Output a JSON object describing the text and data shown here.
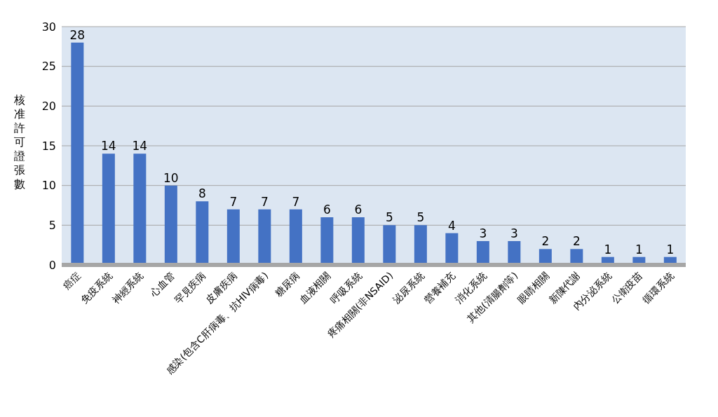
{
  "chart_data": {
    "type": "bar",
    "ylabel": "核准許可證張數",
    "categories": [
      "癌症",
      "免疫系統",
      "神經系統",
      "心血管",
      "罕見疾病",
      "皮膚疾病",
      "感染(包含C肝病毒、抗HIV病毒)",
      "糖尿病",
      "血液相關",
      "呼吸系統",
      "疼痛相關(非NSAID)",
      "泌尿系統",
      "營養補充",
      "消化系統",
      "其他(清腸劑等)",
      "眼睛相關",
      "新陳代謝",
      "內分泌系統",
      "公衛疫苗",
      "循環系統"
    ],
    "values": [
      28,
      14,
      14,
      10,
      8,
      7,
      7,
      7,
      6,
      6,
      5,
      5,
      4,
      3,
      3,
      2,
      2,
      1,
      1,
      1
    ],
    "color": "#4472c4",
    "ylim": [
      0,
      30
    ],
    "yticks": [
      0,
      5,
      10,
      15,
      20,
      25,
      30
    ],
    "grid": "y",
    "data_labels": true
  }
}
